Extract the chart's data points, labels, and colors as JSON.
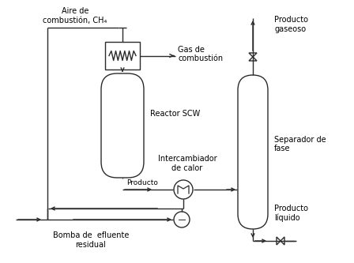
{
  "bg_color": "#ffffff",
  "line_color": "#2b2b2b",
  "lw": 1.0,
  "labels": {
    "aire": "Aire de\ncombustión, CH₄",
    "gas_combustion": "Gas de\ncombustión",
    "reactor_scw": "Reactor SCW",
    "intercambiador": "Intercambiador\nde calor",
    "producto": "Producto",
    "separador": "Separador de\nfase",
    "producto_gaseoso": "Producto\ngaseoso",
    "producto_liquido": "Producto\nlíquido",
    "bomba_residual": "Bomba de  efluente\nresidual"
  },
  "font_size": 7.0
}
